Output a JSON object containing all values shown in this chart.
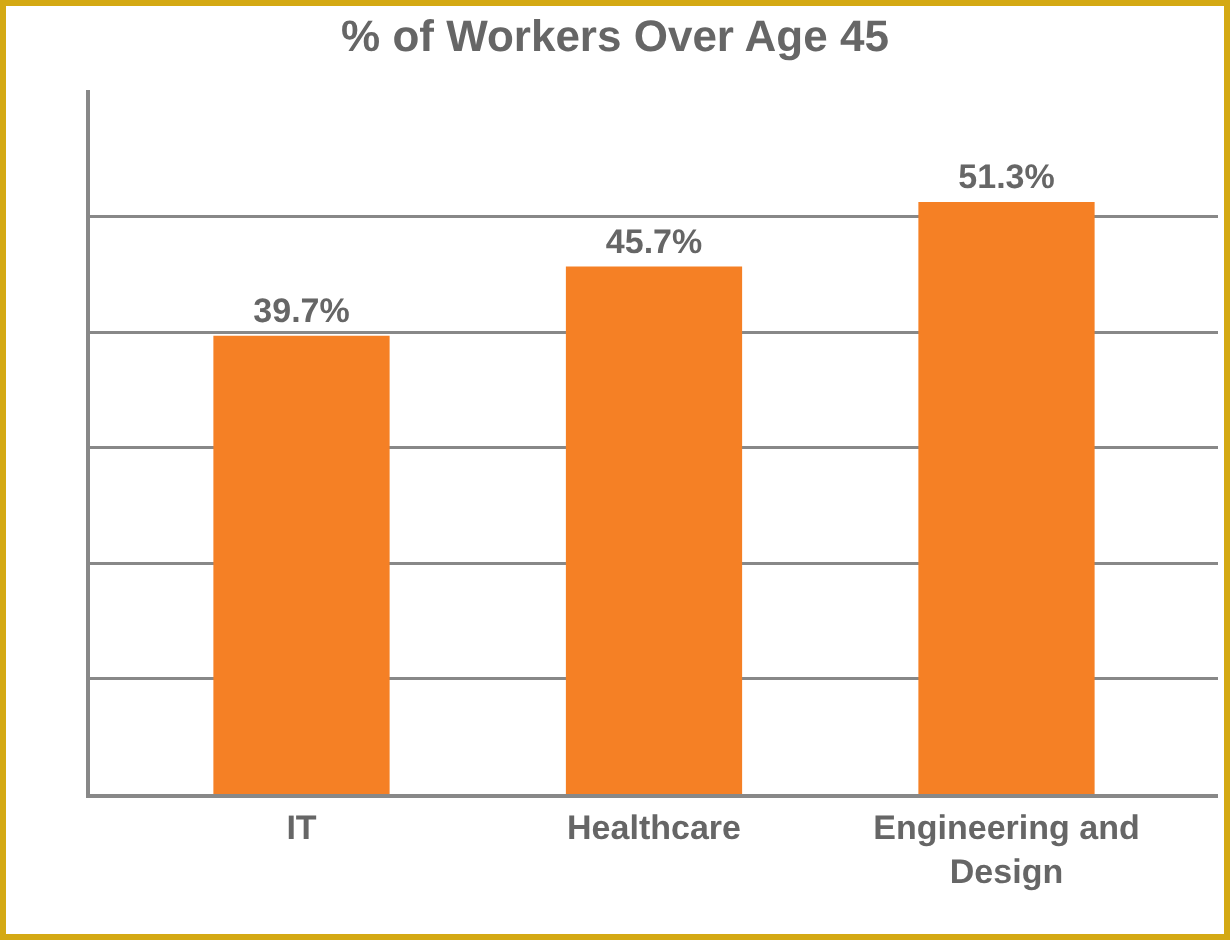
{
  "chart_data": {
    "type": "bar",
    "title": "% of Workers Over Age 45",
    "categories": [
      "IT",
      "Healthcare",
      "Engineering and Design"
    ],
    "values": [
      39.7,
      45.7,
      51.3
    ],
    "value_labels": [
      "39.7%",
      "45.7%",
      "51.3%"
    ],
    "color": "#f58025",
    "ylim": [
      0,
      61
    ],
    "yticks": [
      {
        "value": 0,
        "label": null
      },
      {
        "value": 10,
        "label": null
      },
      {
        "value": 20,
        "label": null
      },
      {
        "value": 30,
        "label": null
      },
      {
        "value": 40,
        "label": null
      },
      {
        "value": 50,
        "label": null
      }
    ],
    "grid": "y",
    "tick_labels": "x"
  }
}
